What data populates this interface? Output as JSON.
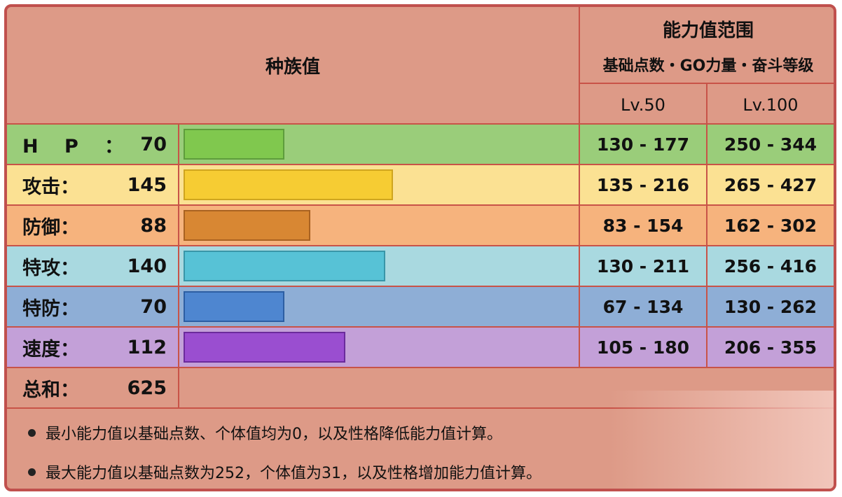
{
  "header": {
    "base_stats_label": "种族值",
    "range_title": "能力值范围",
    "range_subtitle": "基础点数・GO力量・奋斗等级",
    "lv50": "Lv.50",
    "lv100": "Lv.100"
  },
  "stats": [
    {
      "key": "hp",
      "label": "H P ：",
      "value": 70,
      "lv50": "130 - 177",
      "lv100": "250 - 344",
      "row_color": "#9acd7a",
      "bar_color": "#80c84e",
      "bar_border": "#5e9d3c"
    },
    {
      "key": "atk",
      "label": "攻击：",
      "value": 145,
      "lv50": "135 - 216",
      "lv100": "265 - 427",
      "row_color": "#fbe193",
      "bar_color": "#f6cc33",
      "bar_border": "#cfa51e"
    },
    {
      "key": "def",
      "label": "防御：",
      "value": 88,
      "lv50": "83 - 154",
      "lv100": "162 - 302",
      "row_color": "#f6b37d",
      "bar_color": "#d88733",
      "bar_border": "#a96221"
    },
    {
      "key": "spa",
      "label": "特攻：",
      "value": 140,
      "lv50": "130 - 211",
      "lv100": "256 - 416",
      "row_color": "#a9d9e0",
      "bar_color": "#57c2d6",
      "bar_border": "#3996a8"
    },
    {
      "key": "spd",
      "label": "特防：",
      "value": 70,
      "lv50": "67 - 134",
      "lv100": "130 - 262",
      "row_color": "#8eaed6",
      "bar_color": "#4e86d0",
      "bar_border": "#2c5ea3"
    },
    {
      "key": "spe",
      "label": "速度：",
      "value": 112,
      "lv50": "105 - 180",
      "lv100": "206 - 355",
      "row_color": "#c3a0d8",
      "bar_color": "#9a4ed0",
      "bar_border": "#6b2b9c"
    }
  ],
  "bar_scale_max": 270,
  "total": {
    "label": "总和：",
    "value": 625
  },
  "notes": [
    "最小能力值以基础点数、个体值均为0，以及性格降低能力值计算。",
    "最大能力值以基础点数为252，个体值为31，以及性格增加能力值计算。"
  ]
}
